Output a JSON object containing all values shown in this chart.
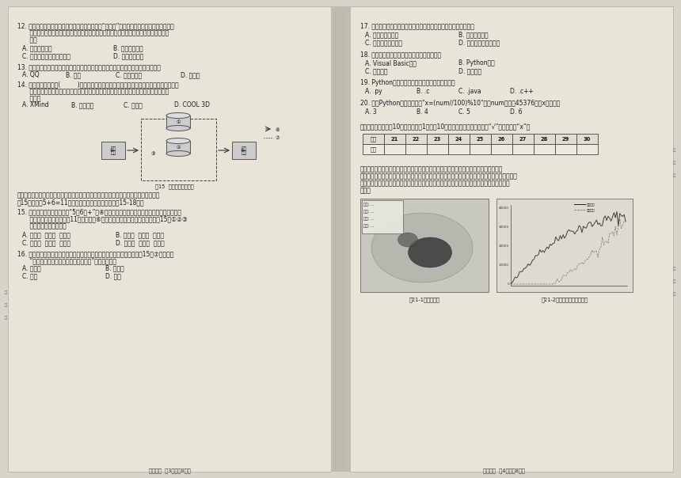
{
  "bg": "#d8d4c8",
  "page_bg": "#e8e4d8",
  "q12_line1": "12. 新冠疫情下，太原市的学校纷纷利用钉钉平台“群直播”展开课堂教学，学生看直播的同时",
  "q12_line2": "    还可以提问和回答问题，课后还可以通过课程回放等功能复习。钉钉软件属于数字化工",
  "q12_line3": "    具的",
  "q12_a": "A. 信息获取工具",
  "q12_b": "B. 信息加工工具",
  "q12_c": "C. 信息通信交流与传输工具",
  "q12_d": "D. 信息采集工具",
  "q13_line1": "13. 教师可借助数字化工具进行学习评估，下列能提供测试和评价统计等服务的工具是",
  "q13_a": "A. QQ",
  "q13_b": "B. 云盘",
  "q13_c": "C. 网易云音乐",
  "q13_d": "D. 问卷星",
  "q14_line1": "14. 教师引导学生借助(         )软件梳理知识点之间的逻辑关系，强化重点知识，通过思维导",
  "q14_line2": "    图的架构，清楚地看到那些关键词的重要性与层次关系，让学生的学习变成主动的吸收",
  "q14_line3": "    过探。",
  "q14_a": "A. XMind",
  "q14_b": "B. 绘声绘影",
  "q14_c": "C. 爱剪辑",
  "q14_d": "D. COOL 3D",
  "diag_caption": "图15  计算机操作运行图",
  "diag_note1": "常用的计算机主要包括运算器、控制器、存储器、输入设备、输出设备五大基本部件，如",
  "diag_note2": "图15所示，以5+6=11为例描述计算机工作过程，完成15-18题。",
  "q15_line1": "15. 首先由控制器指挥将数据“5、6、+”由④输入设备键盘输入，存入存储器，通过读取并经",
  "q15_line2": "    南运算器运算后，将结果11输出，并向⑥输出设备显示答案显示出来。示意图15中①②③",
  "q15_line3": "    分别对应的部件名称是",
  "q15_a": "A. 控制器  运算器  存储器",
  "q15_b": "B. 运算器  存储器  控制器",
  "q15_c": "C. 运算器  控制器  存储器",
  "q15_d": "D. 存储器  运算器  控制器",
  "q16_line1": "16. 计算机工作时有两类信息，一类是数据信息，一类是控制信息，示意图15中⑦用来表示",
  "q16_line2": "    “协调和指挥整个计算机系统操作信息”流向的，表示",
  "q16_a": "A. 数据流",
  "q16_b": "B. 控制流",
  "q16_c": "C. 读数",
  "q16_d": "D. 取数",
  "footer_left": "高一信息  第3页（共8页）",
  "q17_line1": "17. 计算机内部，信息的存储和处理都采用二进制，最主要的原因是",
  "q17_a": "A. 便于存储与计算",
  "q17_b": "B. 便于数据输入",
  "q17_c": "C. 节约计算存储空间",
  "q17_d": "D. 易于用电子元件实现",
  "q18_line1": "18. 计算机能直接接收和执行的程序设计语言为",
  "q18_a": "A. Visual Basic语言",
  "q18_b": "B. Python语言",
  "q18_c": "C. 机器语言",
  "q18_d": "D. 自然语言",
  "q19_line1": "19. Python语言源代码程序编译后的文件扩展名为",
  "q19_a": "A. .py",
  "q19_b": "B. .c",
  "q19_c": "C. .java",
  "q19_d": "D. .c++",
  "q20_line1": "20. 对于Python语言中的语句\"x=(num//100)%10\"，当num的值为45376时，x的值应为",
  "q20_a": "A. 3",
  "q20_b": "B. 4",
  "q20_c": "C. 5",
  "q20_d": "D. 6",
  "sec2_title": "二、判断题（本题共10小题，每小题1分，共10分。正确的在相应表格内打“√”，错误的打“x”）",
  "tbl_headers": [
    "题号",
    "21",
    "22",
    "23",
    "24",
    "25",
    "26",
    "27",
    "28",
    "29",
    "30"
  ],
  "tbl_row0": [
    "答案",
    "",
    "",
    "",
    "",
    "",
    "",
    "",
    "",
    "",
    ""
  ],
  "passage1": "关于新冠肺炎疫情的信息，由疫情实时大数据报告（如图为部分数据截图）获知，其中用",
  "passage2": "汉字、数值、加减符号描述疫情确诊、治愈、死亡等情况；还可以用颜色、表格表、图描述疫情地",
  "passage3": "区分布；另外输入确诊趋势等体式。请运用数据、信息、知识与智慧之间的相互关系完成下列",
  "passage4": "判断。",
  "fig1_cap": "图21-1国内疫情图",
  "fig2_cap": "图21-2国内国外新增确诊趋势",
  "footer_right": "高一信息  第4页（共8页）",
  "box_prog": "程序",
  "box_data": "数据",
  "box_proc": "处理",
  "box_result": "结果",
  "circ1": "①",
  "circ2": "②",
  "circ3": "③",
  "circ4": "④",
  "circ5": "⑤",
  "circ6": "⑥",
  "circ7": "⑦",
  "bind_chars": [
    "装",
    "订",
    "线"
  ],
  "stat_rows": [
    "确诊: ...",
    "治愈: ...",
    "死亡: ...",
    "新增: ..."
  ],
  "chart_labels": [
    "国内新增",
    "境外输入"
  ],
  "chart_yvals": [
    "40000",
    "30000",
    "20000",
    "10000",
    "0"
  ]
}
